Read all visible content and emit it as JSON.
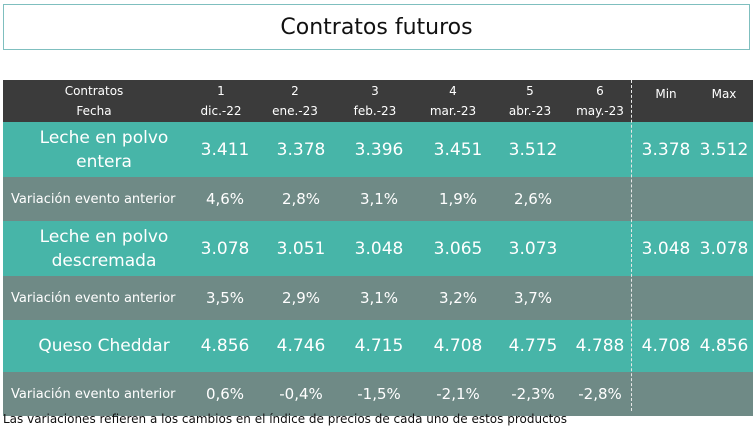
{
  "title": "Contratos futuros",
  "header": {
    "label_top": "Contratos",
    "label_bottom": "Fecha",
    "contracts": [
      {
        "num": "1",
        "date": "dic.-22"
      },
      {
        "num": "2",
        "date": "ene.-23"
      },
      {
        "num": "3",
        "date": "feb.-23"
      },
      {
        "num": "4",
        "date": "mar.-23"
      },
      {
        "num": "5",
        "date": "abr.-23"
      },
      {
        "num": "6",
        "date": "may.-23"
      }
    ],
    "min": "Min",
    "max": "Max"
  },
  "rows": [
    {
      "label_a": "Leche en polvo",
      "label_b": "entera",
      "values": [
        "3.411",
        "3.378",
        "3.396",
        "3.451",
        "3.512",
        ""
      ],
      "min": "3.378",
      "max": "3.512"
    },
    {
      "label": "Variación evento anterior",
      "values": [
        "4,6%",
        "2,8%",
        "3,1%",
        "1,9%",
        "2,6%",
        ""
      ],
      "min": "",
      "max": ""
    },
    {
      "label_a": "Leche en polvo",
      "label_b": "descremada",
      "values": [
        "3.078",
        "3.051",
        "3.048",
        "3.065",
        "3.073",
        ""
      ],
      "min": "3.048",
      "max": "3.078"
    },
    {
      "label": "Variación evento anterior",
      "values": [
        "3,5%",
        "2,9%",
        "3,1%",
        "3,2%",
        "3,7%",
        ""
      ],
      "min": "",
      "max": ""
    },
    {
      "label": "Queso Cheddar",
      "values": [
        "4.856",
        "4.746",
        "4.715",
        "4.708",
        "4.775",
        "4.788"
      ],
      "min": "4.708",
      "max": "4.856"
    },
    {
      "label": "Variación evento anterior",
      "values": [
        "0,6%",
        "-0,4%",
        "-1,5%",
        "-2,1%",
        "-2,3%",
        "-2,8%"
      ],
      "min": "",
      "max": ""
    }
  ],
  "footnote": "Las variaciones refieren a los cambios en el índice de precios de cada uno de estos productos",
  "colors": {
    "header_bg": "#3b3b3b",
    "product_row": "#47b5a8",
    "variation_row": "#6f8a86"
  }
}
